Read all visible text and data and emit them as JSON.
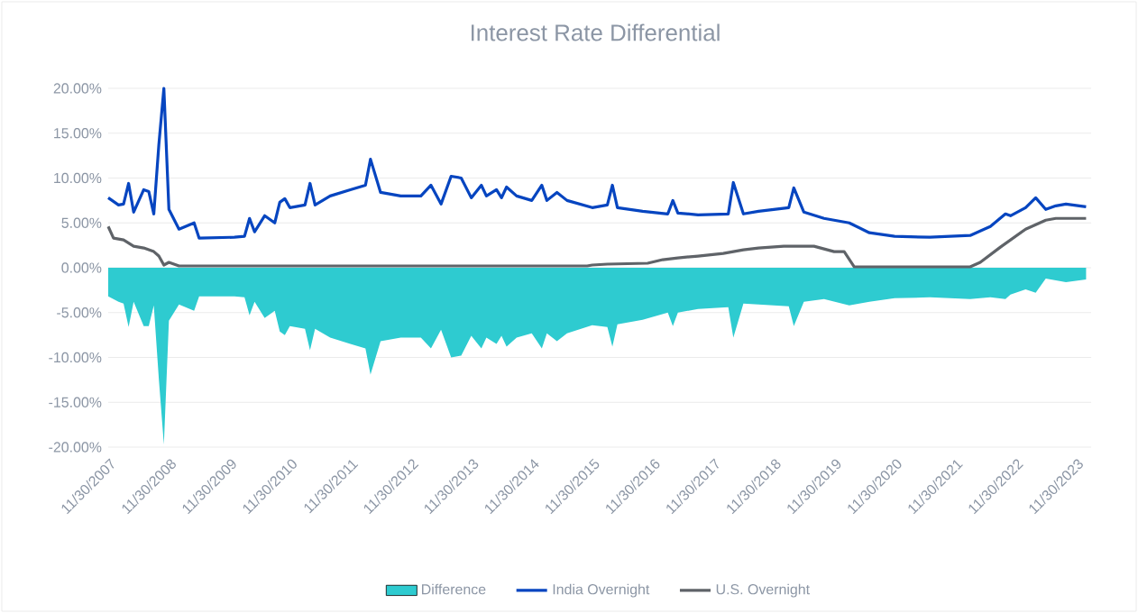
{
  "chart_data": {
    "type": "line",
    "title": "Interest Rate Differential",
    "xlim": [
      "2007-11-30",
      "2024-03"
    ],
    "xticks": [
      {
        "value": "2007-11-30",
        "label": "11/30/2007"
      },
      {
        "value": "2008-11-30",
        "label": "11/30/2008"
      },
      {
        "value": "2009-11-30",
        "label": "11/30/2009"
      },
      {
        "value": "2010-11-30",
        "label": "11/30/2010"
      },
      {
        "value": "2011-11-30",
        "label": "11/30/2011"
      },
      {
        "value": "2012-11-30",
        "label": "11/30/2012"
      },
      {
        "value": "2013-11-30",
        "label": "11/30/2013"
      },
      {
        "value": "2014-11-30",
        "label": "11/30/2014"
      },
      {
        "value": "2015-11-30",
        "label": "11/30/2015"
      },
      {
        "value": "2016-11-30",
        "label": "11/30/2016"
      },
      {
        "value": "2017-11-30",
        "label": "11/30/2017"
      },
      {
        "value": "2018-11-30",
        "label": "11/30/2018"
      },
      {
        "value": "2019-11-30",
        "label": "11/30/2019"
      },
      {
        "value": "2020-11-30",
        "label": "11/30/2020"
      },
      {
        "value": "2021-11-30",
        "label": "11/30/2021"
      },
      {
        "value": "2022-11-30",
        "label": "11/30/2022"
      },
      {
        "value": "2023-11-30",
        "label": "11/30/2023"
      }
    ],
    "ylim": [
      -20,
      20
    ],
    "yticks": [
      {
        "value": -20,
        "label": "-20.00%"
      },
      {
        "value": -15,
        "label": "-15.00%"
      },
      {
        "value": -10,
        "label": "-10.00%"
      },
      {
        "value": -5,
        "label": "-5.00%"
      },
      {
        "value": 0,
        "label": "0.00%"
      },
      {
        "value": 5,
        "label": "5.00%"
      },
      {
        "value": 10,
        "label": "10.00%"
      },
      {
        "value": 15,
        "label": "15.00%"
      },
      {
        "value": 20,
        "label": "20.00%"
      }
    ],
    "grid": "y",
    "legend": "bottom",
    "line_style": "solid",
    "marker": "none",
    "series": [
      {
        "name": "Difference",
        "type": "area",
        "color": "#2ecbd0",
        "x": [
          "2007-11-30",
          "2008-02",
          "2008-03",
          "2008-04",
          "2008-05",
          "2008-07",
          "2008-08",
          "2008-09",
          "2008-10",
          "2008-11",
          "2008-12",
          "2009-02",
          "2009-05",
          "2009-06",
          "2010-01",
          "2010-03",
          "2010-04",
          "2010-05",
          "2010-07",
          "2010-09",
          "2010-10",
          "2010-11",
          "2010-12",
          "2011-03",
          "2011-04",
          "2011-05",
          "2011-08",
          "2011-12",
          "2012-03",
          "2012-04",
          "2012-06",
          "2012-10",
          "2013-02",
          "2013-04",
          "2013-06",
          "2013-08",
          "2013-10",
          "2013-12",
          "2014-02",
          "2014-03",
          "2014-05",
          "2014-06",
          "2014-07",
          "2014-09",
          "2014-12",
          "2015-02",
          "2015-03",
          "2015-05",
          "2015-07",
          "2015-12",
          "2016-03",
          "2016-04",
          "2016-05",
          "2016-10",
          "2017-03",
          "2017-04",
          "2017-05",
          "2017-09",
          "2018-03",
          "2018-04",
          "2018-06",
          "2018-09",
          "2019-03",
          "2019-04",
          "2019-06",
          "2019-10",
          "2020-03",
          "2020-07",
          "2020-12",
          "2021-07",
          "2022-03",
          "2022-07",
          "2022-10",
          "2022-11",
          "2023-02",
          "2023-04",
          "2023-06",
          "2023-08",
          "2023-10",
          "2024-02"
        ],
        "values": [
          -3.2,
          -3.8,
          -4.0,
          -6.6,
          -3.8,
          -6.5,
          -6.5,
          -4.2,
          -12.4,
          -19.7,
          -5.9,
          -4.1,
          -4.8,
          -3.2,
          -3.2,
          -3.3,
          -5.3,
          -3.8,
          -5.6,
          -4.8,
          -7.1,
          -7.5,
          -6.5,
          -6.8,
          -9.2,
          -6.8,
          -7.8,
          -8.5,
          -9.0,
          -11.9,
          -8.2,
          -7.8,
          -7.8,
          -9.0,
          -6.9,
          -10.0,
          -9.8,
          -7.6,
          -9.0,
          -7.8,
          -8.5,
          -7.6,
          -8.8,
          -7.8,
          -7.3,
          -9.0,
          -7.3,
          -8.2,
          -7.3,
          -6.4,
          -6.6,
          -8.8,
          -6.3,
          -5.8,
          -5.0,
          -6.5,
          -5.0,
          -4.6,
          -4.4,
          -7.8,
          -4.0,
          -4.1,
          -4.3,
          -6.5,
          -3.8,
          -3.5,
          -4.2,
          -3.8,
          -3.4,
          -3.3,
          -3.5,
          -3.3,
          -3.5,
          -3.0,
          -2.4,
          -2.8,
          -1.2,
          -1.4,
          -1.6,
          -1.3
        ]
      },
      {
        "name": "India Overnight",
        "color": "#0645c0",
        "x": [
          "2007-11-30",
          "2008-02",
          "2008-03",
          "2008-04",
          "2008-05",
          "2008-07",
          "2008-08",
          "2008-09",
          "2008-10",
          "2008-11",
          "2008-12",
          "2009-02",
          "2009-05",
          "2009-06",
          "2010-01",
          "2010-03",
          "2010-04",
          "2010-05",
          "2010-07",
          "2010-09",
          "2010-10",
          "2010-11",
          "2010-12",
          "2011-03",
          "2011-04",
          "2011-05",
          "2011-08",
          "2011-12",
          "2012-03",
          "2012-04",
          "2012-06",
          "2012-10",
          "2013-02",
          "2013-04",
          "2013-06",
          "2013-08",
          "2013-10",
          "2013-12",
          "2014-02",
          "2014-03",
          "2014-05",
          "2014-06",
          "2014-07",
          "2014-09",
          "2014-12",
          "2015-02",
          "2015-03",
          "2015-05",
          "2015-07",
          "2015-12",
          "2016-03",
          "2016-04",
          "2016-05",
          "2016-10",
          "2017-03",
          "2017-04",
          "2017-05",
          "2017-09",
          "2018-03",
          "2018-04",
          "2018-06",
          "2018-09",
          "2019-03",
          "2019-04",
          "2019-06",
          "2019-10",
          "2020-03",
          "2020-07",
          "2020-12",
          "2021-07",
          "2022-03",
          "2022-07",
          "2022-10",
          "2022-11",
          "2023-02",
          "2023-04",
          "2023-06",
          "2023-08",
          "2023-10",
          "2024-02"
        ],
        "values": [
          7.8,
          7.0,
          7.1,
          9.4,
          6.2,
          8.7,
          8.5,
          6.0,
          13.7,
          20.0,
          6.5,
          4.3,
          5.0,
          3.3,
          3.4,
          3.5,
          5.5,
          4.0,
          5.8,
          5.0,
          7.3,
          7.7,
          6.7,
          7.0,
          9.4,
          7.0,
          8.0,
          8.7,
          9.2,
          12.1,
          8.4,
          8.0,
          8.0,
          9.2,
          7.1,
          10.2,
          10.0,
          7.8,
          9.2,
          8.0,
          8.7,
          7.8,
          9.0,
          8.0,
          7.5,
          9.2,
          7.5,
          8.4,
          7.5,
          6.7,
          7.0,
          9.2,
          6.7,
          6.3,
          6.0,
          7.5,
          6.1,
          5.9,
          6.0,
          9.5,
          6.0,
          6.3,
          6.7,
          8.9,
          6.2,
          5.5,
          5.0,
          3.9,
          3.5,
          3.4,
          3.6,
          4.6,
          6.0,
          5.8,
          6.7,
          7.8,
          6.5,
          6.9,
          7.1,
          6.8
        ]
      },
      {
        "name": "U.S. Overnight",
        "color": "#5f6368",
        "x": [
          "2007-11-30",
          "2008-01",
          "2008-03",
          "2008-05",
          "2008-07",
          "2008-09",
          "2008-10",
          "2008-11",
          "2008-12",
          "2009-02",
          "2009-06",
          "2015-11",
          "2015-12",
          "2016-03",
          "2016-11",
          "2017-02",
          "2017-05",
          "2017-09",
          "2018-02",
          "2018-06",
          "2018-09",
          "2019-02",
          "2019-08",
          "2019-12",
          "2020-02",
          "2020-04",
          "2022-03",
          "2022-05",
          "2022-09",
          "2023-02",
          "2023-06",
          "2023-08",
          "2024-02"
        ],
        "values": [
          4.6,
          3.3,
          3.1,
          2.4,
          2.2,
          1.8,
          1.3,
          0.3,
          0.6,
          0.2,
          0.2,
          0.2,
          0.3,
          0.4,
          0.5,
          0.9,
          1.1,
          1.3,
          1.6,
          2.0,
          2.2,
          2.4,
          2.4,
          1.8,
          1.8,
          0.1,
          0.1,
          0.6,
          2.3,
          4.3,
          5.3,
          5.5,
          5.5
        ]
      }
    ]
  }
}
